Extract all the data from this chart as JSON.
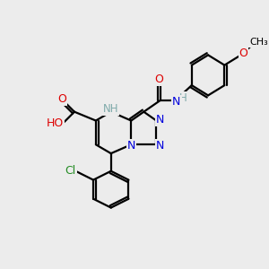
{
  "bg_color": "#ececec",
  "atom_colors": {
    "C": "#000000",
    "N": "#0000dd",
    "O": "#dd0000",
    "Cl": "#228B22",
    "H_label": "#7faaaa"
  },
  "bond_color": "#000000",
  "bond_width": 1.6,
  "figsize": [
    3.0,
    3.0
  ],
  "dpi": 100,
  "xlim": [
    0,
    10
  ],
  "ylim": [
    0,
    10
  ]
}
